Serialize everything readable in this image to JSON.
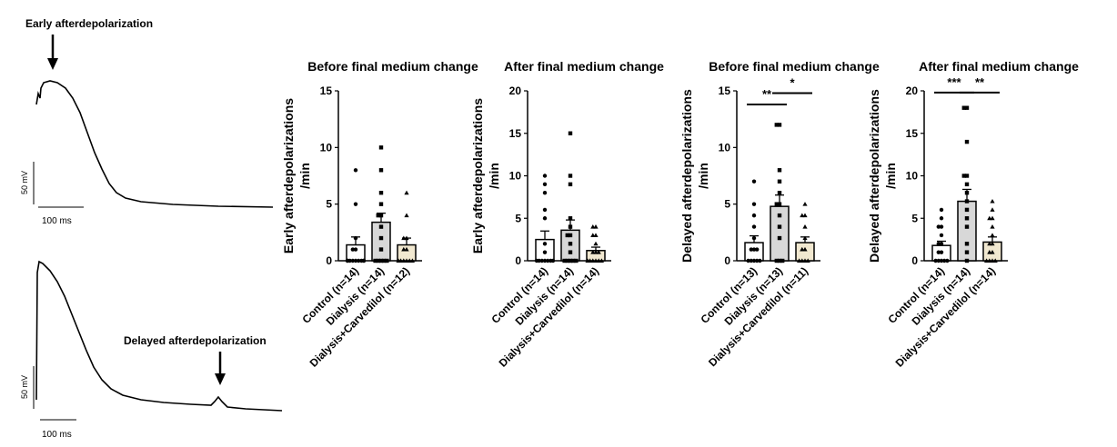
{
  "traces": {
    "early": {
      "label": "Early afterdepolarization",
      "scale_v": "50 mV",
      "scale_t": "100 ms"
    },
    "delayed": {
      "label": "Delayed afterdepolarization",
      "scale_v": "50 mV",
      "scale_t": "100 ms"
    }
  },
  "colors": {
    "control": "#ffffff",
    "dialysis": "#d8d8d8",
    "carvedilol": "#f1e8d0",
    "stroke": "#000000"
  },
  "chart_data": [
    {
      "type": "bar",
      "title": "Before final medium change",
      "ylabel_line1": "Early afterdepolarizations",
      "ylabel_line2": "/min",
      "ylim": [
        0,
        15
      ],
      "yticks": [
        "0",
        "5",
        "10",
        "15"
      ],
      "categories": [
        "Control (n=14)",
        "Dialysis (n=14)",
        "Dialysis+Carvedilol (n=12)"
      ],
      "values": [
        1.4,
        3.4,
        1.4
      ],
      "sem": [
        0.7,
        0.8,
        0.6
      ],
      "points": [
        [
          0,
          0,
          0,
          0,
          0,
          0,
          0,
          0,
          0,
          1,
          1,
          2,
          5,
          8
        ],
        [
          0,
          0,
          0,
          0,
          0,
          1,
          2,
          3,
          4,
          4,
          5,
          6,
          8,
          10
        ],
        [
          0,
          0,
          0,
          0,
          0,
          0,
          1,
          1,
          2,
          2,
          4,
          6
        ]
      ],
      "significance": []
    },
    {
      "type": "bar",
      "title": "After final medium change",
      "ylabel_line1": "Early afterdepolarizations",
      "ylabel_line2": "/min",
      "ylim": [
        0,
        20
      ],
      "yticks": [
        "0",
        "5",
        "10",
        "15",
        "20"
      ],
      "categories": [
        "Control (n=14)",
        "Dialysis (n=14)",
        "Dialysis+Carvedilol (n=14)"
      ],
      "values": [
        2.5,
        3.6,
        1.2
      ],
      "sem": [
        1.0,
        1.2,
        0.4
      ],
      "points": [
        [
          0,
          0,
          0,
          0,
          0,
          0,
          0,
          1,
          2,
          5,
          6,
          8,
          9,
          10
        ],
        [
          0,
          0,
          0,
          0,
          0,
          1,
          2,
          3,
          3,
          4,
          5,
          9,
          10,
          15
        ],
        [
          0,
          0,
          0,
          0,
          0,
          0,
          1,
          1,
          1,
          2,
          3,
          3,
          4,
          4
        ]
      ],
      "significance": []
    },
    {
      "type": "bar",
      "title": "Before final medium change",
      "ylabel_line1": "Delayed afterdepolarizations",
      "ylabel_line2": "/min",
      "ylim": [
        0,
        15
      ],
      "yticks": [
        "0",
        "5",
        "10",
        "15"
      ],
      "categories": [
        "Control (n=13)",
        "Dialysis (n=13)",
        "Dialysis+Carvedilol (n=11)"
      ],
      "values": [
        1.6,
        4.8,
        1.6
      ],
      "sem": [
        0.6,
        1.0,
        0.5
      ],
      "points": [
        [
          0,
          0,
          0,
          0,
          0,
          1,
          1,
          1,
          2,
          3,
          4,
          5,
          7
        ],
        [
          0,
          0,
          0,
          2,
          3,
          4,
          5,
          5,
          6,
          7,
          8,
          12,
          12
        ],
        [
          0,
          0,
          0,
          0,
          1,
          1,
          2,
          3,
          4,
          4,
          5
        ]
      ],
      "significance": [
        {
          "label": "**",
          "from": 0,
          "to": 1,
          "y": 13.8
        },
        {
          "label": "*",
          "from": 1,
          "to": 2,
          "y": 14.8
        }
      ]
    },
    {
      "type": "bar",
      "title": "After final medium change",
      "ylabel_line1": "Delayed afterdepolarizations",
      "ylabel_line2": "/min",
      "ylim": [
        0,
        20
      ],
      "yticks": [
        "0",
        "5",
        "10",
        "15",
        "20"
      ],
      "categories": [
        "Control (n=14)",
        "Dialysis (n=14)",
        "Dialysis+Carvedilol (n=14)"
      ],
      "values": [
        1.8,
        7.0,
        2.2
      ],
      "sem": [
        0.5,
        1.4,
        0.6
      ],
      "points": [
        [
          0,
          0,
          0,
          0,
          0,
          1,
          1,
          2,
          2,
          3,
          4,
          4,
          5,
          6
        ],
        [
          0,
          1,
          2,
          4,
          5,
          6,
          7,
          8,
          9,
          10,
          10,
          14,
          18,
          18
        ],
        [
          0,
          0,
          0,
          0,
          1,
          1,
          2,
          2,
          3,
          4,
          5,
          5,
          6,
          7
        ]
      ],
      "significance": [
        {
          "label": "***",
          "from": 0,
          "to": 1,
          "y": 19.8
        },
        {
          "label": "**",
          "from": 1,
          "to": 2,
          "y": 19.8
        }
      ]
    }
  ]
}
